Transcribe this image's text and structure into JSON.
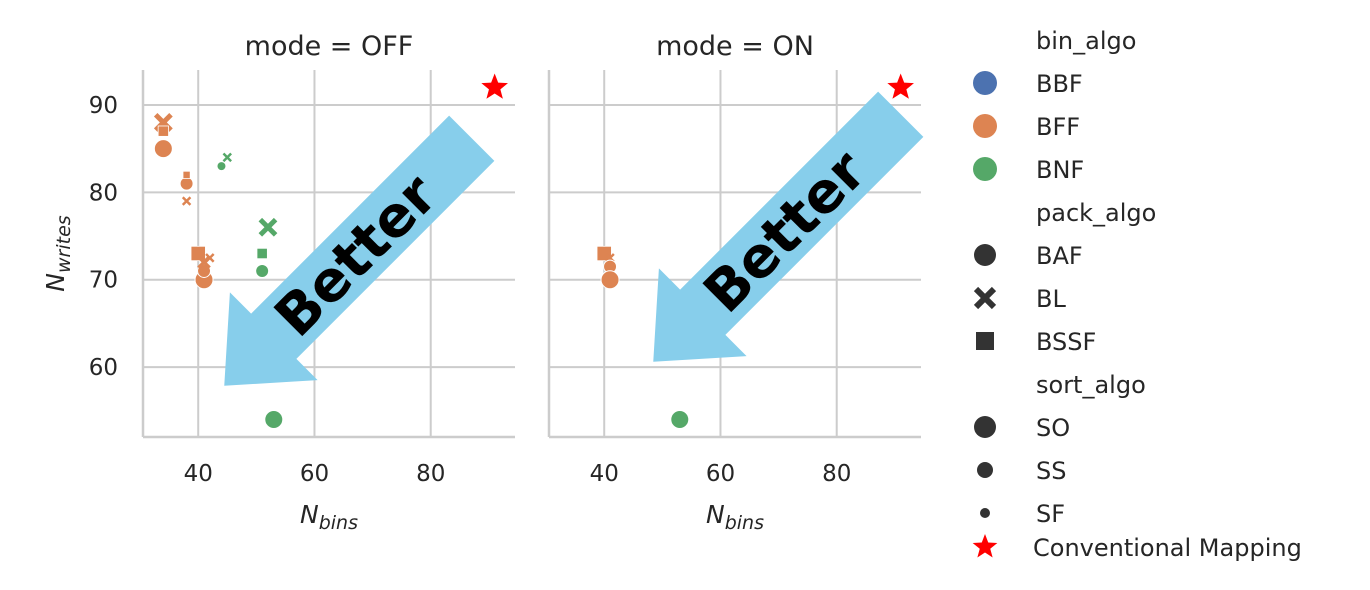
{
  "chart_data": {
    "type": "scatter",
    "panels": [
      {
        "title": "mode = OFF",
        "points": [
          {
            "x": 34,
            "y": 85,
            "bin": "BFF",
            "pack": "BAF",
            "sort": "SO"
          },
          {
            "x": 34,
            "y": 88,
            "bin": "BFF",
            "pack": "BL",
            "sort": "SO"
          },
          {
            "x": 34,
            "y": 87,
            "bin": "BFF",
            "pack": "BSSF",
            "sort": "SS"
          },
          {
            "x": 38,
            "y": 81,
            "bin": "BFF",
            "pack": "BAF",
            "sort": "SS"
          },
          {
            "x": 38,
            "y": 82,
            "bin": "BFF",
            "pack": "BSSF",
            "sort": "SF"
          },
          {
            "x": 38,
            "y": 79,
            "bin": "BFF",
            "pack": "BL",
            "sort": "SF"
          },
          {
            "x": 40,
            "y": 73,
            "bin": "BFF",
            "pack": "BSSF",
            "sort": "SO"
          },
          {
            "x": 41,
            "y": 70,
            "bin": "BFF",
            "pack": "BAF",
            "sort": "SO"
          },
          {
            "x": 41,
            "y": 71,
            "bin": "BFF",
            "pack": "BAF",
            "sort": "SS"
          },
          {
            "x": 41,
            "y": 72,
            "bin": "BFF",
            "pack": "BL",
            "sort": "SS"
          },
          {
            "x": 42,
            "y": 72.5,
            "bin": "BFF",
            "pack": "BL",
            "sort": "SF"
          },
          {
            "x": 44,
            "y": 83,
            "bin": "BNF",
            "pack": "BAF",
            "sort": "SF"
          },
          {
            "x": 45,
            "y": 84,
            "bin": "BNF",
            "pack": "BL",
            "sort": "SF"
          },
          {
            "x": 51,
            "y": 71,
            "bin": "BNF",
            "pack": "BAF",
            "sort": "SS"
          },
          {
            "x": 51,
            "y": 73,
            "bin": "BNF",
            "pack": "BSSF",
            "sort": "SS"
          },
          {
            "x": 52,
            "y": 76,
            "bin": "BNF",
            "pack": "BL",
            "sort": "SO"
          },
          {
            "x": 53,
            "y": 54,
            "bin": "BNF",
            "pack": "BAF",
            "sort": "SO"
          }
        ]
      },
      {
        "title": "mode = ON",
        "points": [
          {
            "x": 40,
            "y": 73,
            "bin": "BFF",
            "pack": "BSSF",
            "sort": "SO"
          },
          {
            "x": 41,
            "y": 72.5,
            "bin": "BFF",
            "pack": "BL",
            "sort": "SF"
          },
          {
            "x": 41,
            "y": 71.5,
            "bin": "BFF",
            "pack": "BAF",
            "sort": "SS"
          },
          {
            "x": 41,
            "y": 70,
            "bin": "BFF",
            "pack": "BAF",
            "sort": "SO"
          },
          {
            "x": 53,
            "y": 54,
            "bin": "BNF",
            "pack": "BAF",
            "sort": "SO"
          }
        ]
      }
    ],
    "reference_point": {
      "label": "Conventional Mapping",
      "x": 91,
      "y": 92,
      "color": "#ff0000"
    },
    "xlabel": "N",
    "xlabel_sub": "bins",
    "ylabel": "N",
    "ylabel_sub": "writes",
    "xlim": [
      30.5,
      94.5
    ],
    "ylim": [
      52,
      94
    ],
    "xticks": [
      "40",
      "60",
      "80"
    ],
    "yticks": [
      "60",
      "70",
      "80",
      "90"
    ],
    "grid": true,
    "annotation": {
      "text": "Better",
      "color": "#87ceeb"
    },
    "legend": {
      "placement": "right",
      "sections": [
        {
          "title": "bin_algo",
          "items": [
            {
              "label": "BBF",
              "color": "#4c72b0",
              "marker": "circle"
            },
            {
              "label": "BFF",
              "color": "#dd8452",
              "marker": "circle"
            },
            {
              "label": "BNF",
              "color": "#55a868",
              "marker": "circle"
            }
          ]
        },
        {
          "title": "pack_algo",
          "items": [
            {
              "label": "BAF",
              "marker": "circle"
            },
            {
              "label": "BL",
              "marker": "x"
            },
            {
              "label": "BSSF",
              "marker": "square"
            }
          ]
        },
        {
          "title": "sort_algo",
          "items": [
            {
              "label": "SO",
              "size": "large"
            },
            {
              "label": "SS",
              "size": "medium"
            },
            {
              "label": "SF",
              "size": "small"
            }
          ]
        }
      ],
      "extra": {
        "label": "Conventional Mapping",
        "marker": "star",
        "color": "#ff0000"
      }
    },
    "colors": {
      "BBF": "#4c72b0",
      "BFF": "#dd8452",
      "BNF": "#55a868",
      "grid": "#cccccc",
      "axis": "#cccccc",
      "legend_marker": "#333333"
    }
  }
}
